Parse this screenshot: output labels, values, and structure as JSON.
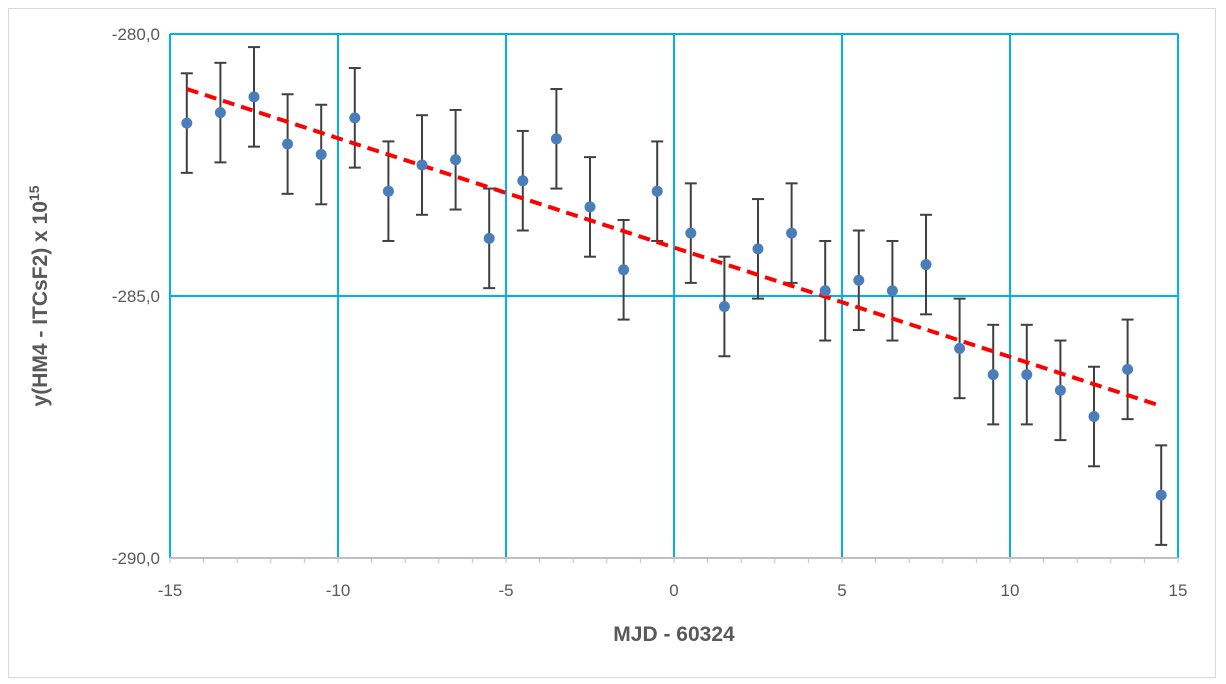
{
  "chart_data": {
    "type": "scatter",
    "title": "",
    "xlabel": "MJD - 60324",
    "ylabel_main": "y(HM4 - ITCsF2) x 10",
    "ylabel_exp": "15",
    "xlim": [
      -15,
      15
    ],
    "ylim": [
      -290,
      -280
    ],
    "x_ticks": [
      -15,
      -10,
      -5,
      0,
      5,
      10,
      15
    ],
    "y_ticks": [
      -290,
      -285,
      -280
    ],
    "x_tick_labels": [
      "-15",
      "-10",
      "-5",
      "0",
      "5",
      "10",
      "15"
    ],
    "y_tick_labels": [
      "-290,0",
      "-285,0",
      "-280,0"
    ],
    "grid": true,
    "colors": {
      "points": "#4a7ebb",
      "error_bars": "#404040",
      "trend": "#ff0000",
      "grid": "#00b0f0",
      "text": "#595959"
    },
    "series": [
      {
        "type": "scatter",
        "x": [
          -14.5,
          -13.5,
          -12.5,
          -11.5,
          -10.5,
          -9.5,
          -8.5,
          -7.5,
          -6.5,
          -5.5,
          -4.5,
          -3.5,
          -2.5,
          -1.5,
          -0.5,
          0.5,
          1.5,
          2.5,
          3.5,
          4.5,
          5.5,
          6.5,
          7.5,
          8.5,
          9.5,
          10.5,
          11.5,
          12.5,
          13.5,
          14.5
        ],
        "y": [
          -281.7,
          -281.5,
          -281.2,
          -282.1,
          -282.3,
          -281.6,
          -283.0,
          -282.5,
          -282.4,
          -283.9,
          -282.8,
          -282.0,
          -283.3,
          -284.5,
          -283.0,
          -283.8,
          -285.2,
          -284.1,
          -283.8,
          -284.9,
          -284.7,
          -284.9,
          -284.4,
          -286.0,
          -286.5,
          -286.5,
          -286.8,
          -287.3,
          -286.4,
          -288.8
        ],
        "error": 0.95
      },
      {
        "type": "line",
        "style": "dashed",
        "x": [
          -14.5,
          14.5
        ],
        "y": [
          -281.05,
          -287.1
        ]
      }
    ]
  }
}
